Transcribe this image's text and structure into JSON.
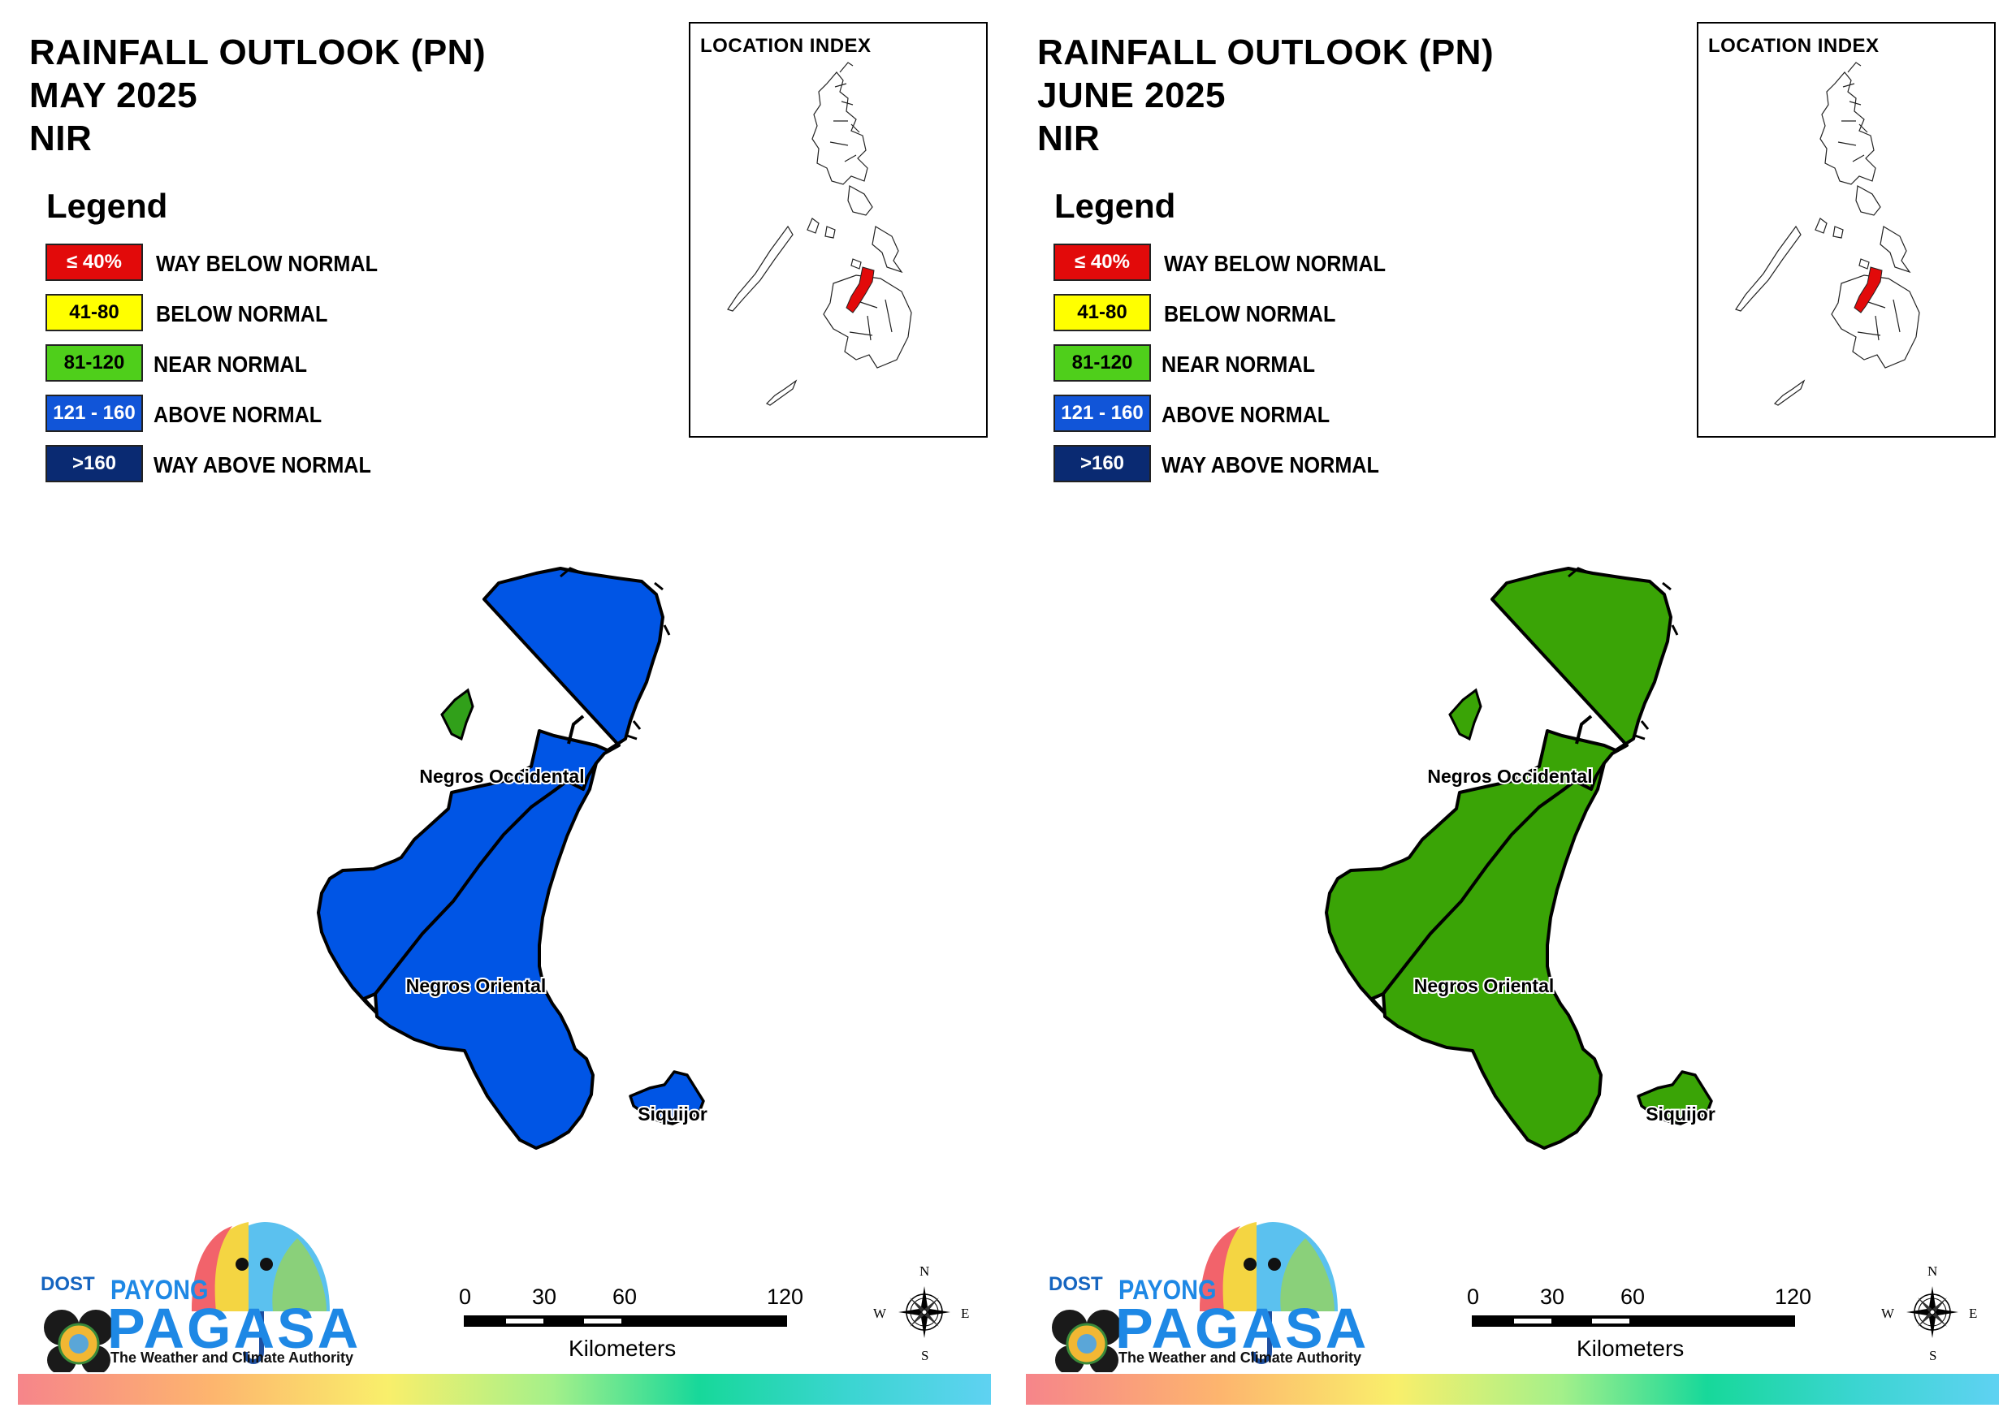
{
  "panels": [
    {
      "id": "may",
      "title": {
        "line1": "RAINFALL OUTLOOK (PN)",
        "line2": "MAY 2025",
        "line3": "NIR"
      },
      "fill_color": "#0055e5",
      "small_patch_color": "#31a01a",
      "category": "121 - 160 (ABOVE NORMAL)"
    },
    {
      "id": "june",
      "title": {
        "line1": "RAINFALL OUTLOOK (PN)",
        "line2": "JUNE 2025",
        "line3": "NIR"
      },
      "fill_color": "#3aa406",
      "small_patch_color": "#3aa406",
      "category": "81-120 (NEAR NORMAL)"
    }
  ],
  "legend": {
    "title": "Legend",
    "items": [
      {
        "range": "≤ 40%",
        "label": "WAY BELOW NORMAL",
        "color": "#e20a0a",
        "text_color": "#ffffff"
      },
      {
        "range": "41-80",
        "label": "BELOW NORMAL",
        "color": "#ffff00",
        "text_color": "#000000"
      },
      {
        "range": "81-120",
        "label": "NEAR NORMAL",
        "color": "#4fcf1b",
        "text_color": "#000000"
      },
      {
        "range": "121 - 160",
        "label": "ABOVE NORMAL",
        "color": "#1155d8",
        "text_color": "#ffffff"
      },
      {
        "range": ">160",
        "label": "WAY ABOVE NORMAL",
        "color": "#0a2a72",
        "text_color": "#ffffff"
      }
    ]
  },
  "location_index": {
    "title": "LOCATION INDEX",
    "highlight_color": "#e20a0a"
  },
  "provinces": [
    {
      "name": "Negros Occidental"
    },
    {
      "name": "Negros Oriental"
    },
    {
      "name": "Siquijor"
    }
  ],
  "scale_bar": {
    "ticks": [
      "0",
      "30",
      "60",
      "120"
    ],
    "units": "Kilometers"
  },
  "compass": {
    "n": "N",
    "s": "S",
    "e": "E",
    "w": "W"
  },
  "logo": {
    "dost": "DOST",
    "payong": "PAYONG",
    "pagasa": "PAGASA",
    "tagline": "The Weather and Climate Authority"
  }
}
